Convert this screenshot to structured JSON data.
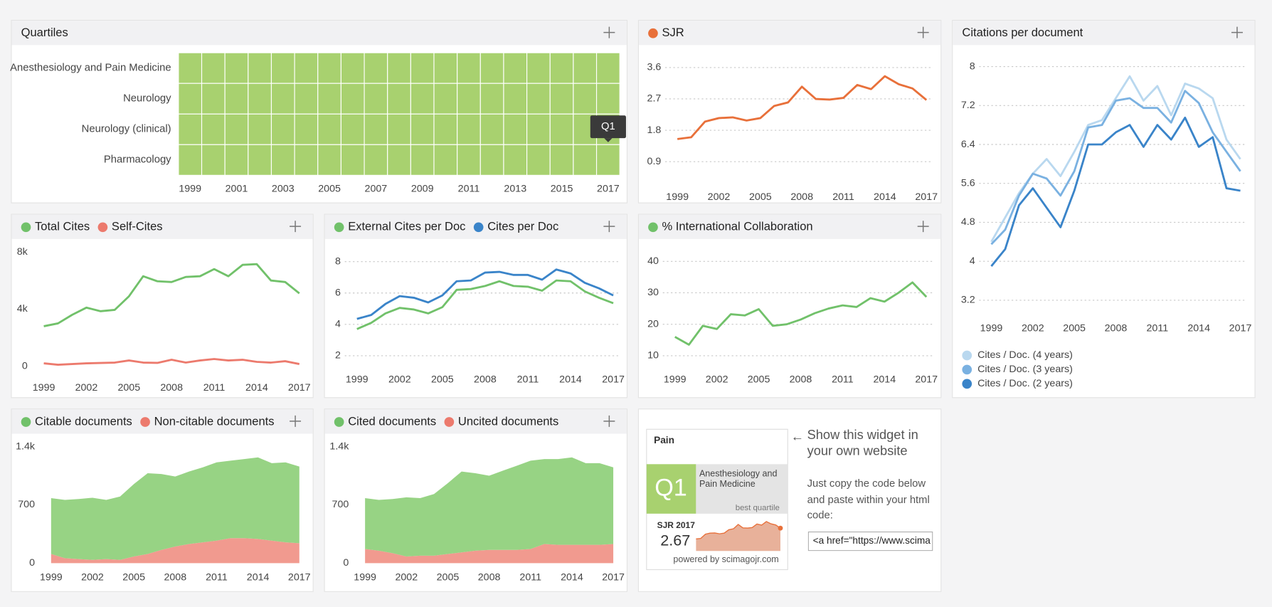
{
  "chart_data": [
    {
      "type": "heatmap",
      "title": "Quartiles",
      "categories": [
        "Anesthesiology and Pain Medicine",
        "Neurology",
        "Neurology (clinical)",
        "Pharmacology"
      ],
      "x": [
        1999,
        2000,
        2001,
        2002,
        2003,
        2004,
        2005,
        2006,
        2007,
        2008,
        2009,
        2010,
        2011,
        2012,
        2013,
        2014,
        2015,
        2016,
        2017
      ],
      "xticks": [
        1999,
        2001,
        2003,
        2005,
        2007,
        2009,
        2011,
        2013,
        2015,
        2017
      ],
      "color": "#a8d16f",
      "values": [
        [
          "Q1",
          "Q1",
          "Q1",
          "Q1",
          "Q1",
          "Q1",
          "Q1",
          "Q1",
          "Q1",
          "Q1",
          "Q1",
          "Q1",
          "Q1",
          "Q1",
          "Q1",
          "Q1",
          "Q1",
          "Q1",
          "Q1"
        ],
        [
          "Q1",
          "Q1",
          "Q1",
          "Q1",
          "Q1",
          "Q1",
          "Q1",
          "Q1",
          "Q1",
          "Q1",
          "Q1",
          "Q1",
          "Q1",
          "Q1",
          "Q1",
          "Q1",
          "Q1",
          "Q1",
          "Q1"
        ],
        [
          "Q1",
          "Q1",
          "Q1",
          "Q1",
          "Q1",
          "Q1",
          "Q1",
          "Q1",
          "Q1",
          "Q1",
          "Q1",
          "Q1",
          "Q1",
          "Q1",
          "Q1",
          "Q1",
          "Q1",
          "Q1",
          "Q1"
        ],
        [
          "Q1",
          "Q1",
          "Q1",
          "Q1",
          "Q1",
          "Q1",
          "Q1",
          "Q1",
          "Q1",
          "Q1",
          "Q1",
          "Q1",
          "Q1",
          "Q1",
          "Q1",
          "Q1",
          "Q1",
          "Q1",
          "Q1"
        ]
      ]
    },
    {
      "type": "line",
      "x": [
        1999,
        2000,
        2001,
        2002,
        2003,
        2004,
        2005,
        2006,
        2007,
        2008,
        2009,
        2010,
        2011,
        2012,
        2013,
        2014,
        2015,
        2016,
        2017
      ],
      "xlim": [
        1999,
        2017
      ],
      "xticks": [
        1999,
        2002,
        2005,
        2008,
        2011,
        2014,
        2017
      ],
      "ylim": [
        0.3,
        4.0
      ],
      "yticks": [
        0.9,
        1.8,
        2.7,
        3.6
      ],
      "grid": true,
      "series": [
        {
          "name": "SJR",
          "color": "#e8703a",
          "values": [
            1.55,
            1.6,
            2.05,
            2.15,
            2.17,
            2.08,
            2.15,
            2.5,
            2.6,
            3.05,
            2.7,
            2.68,
            2.73,
            3.1,
            2.98,
            3.35,
            3.12,
            3.0,
            2.67
          ]
        }
      ]
    },
    {
      "type": "line",
      "title": "Citations per document",
      "x": [
        1999,
        2000,
        2001,
        2002,
        2003,
        2004,
        2005,
        2006,
        2007,
        2008,
        2009,
        2010,
        2011,
        2012,
        2013,
        2014,
        2015,
        2016,
        2017
      ],
      "xlim": [
        1999,
        2017
      ],
      "xticks": [
        1999,
        2002,
        2005,
        2008,
        2011,
        2014,
        2017
      ],
      "ylim": [
        2.8,
        8.35
      ],
      "yticks": [
        3.2,
        4,
        4.8,
        5.6,
        6.4,
        7.2,
        8
      ],
      "grid": true,
      "legend": "bottom-left",
      "series": [
        {
          "name": "Cites / Doc. (4 years)",
          "color": "#b9d8ef",
          "values": [
            4.4,
            4.9,
            5.4,
            5.8,
            6.1,
            5.75,
            6.25,
            6.8,
            6.9,
            7.35,
            7.8,
            7.3,
            7.6,
            7.0,
            7.65,
            7.55,
            7.35,
            6.5,
            6.1
          ]
        },
        {
          "name": "Cites / Doc. (3 years)",
          "color": "#7ab1e1",
          "values": [
            4.35,
            4.65,
            5.35,
            5.8,
            5.7,
            5.35,
            5.85,
            6.75,
            6.8,
            7.3,
            7.35,
            7.15,
            7.15,
            6.85,
            7.5,
            7.25,
            6.65,
            6.25,
            5.85
          ]
        },
        {
          "name": "Cites / Doc. (2 years)",
          "color": "#3a84c9",
          "values": [
            3.9,
            4.25,
            5.15,
            5.5,
            5.1,
            4.7,
            5.45,
            6.4,
            6.4,
            6.65,
            6.8,
            6.35,
            6.8,
            6.5,
            6.95,
            6.35,
            6.55,
            5.5,
            5.45
          ]
        }
      ]
    },
    {
      "type": "line",
      "x": [
        1999,
        2000,
        2001,
        2002,
        2003,
        2004,
        2005,
        2006,
        2007,
        2008,
        2009,
        2010,
        2011,
        2012,
        2013,
        2014,
        2015,
        2016,
        2017
      ],
      "xlim": [
        1999,
        2017
      ],
      "xticks": [
        1999,
        2002,
        2005,
        2008,
        2011,
        2014,
        2017
      ],
      "ylim": [
        -500,
        8600
      ],
      "yticks": [
        0,
        {
          "value": 4000,
          "label": "4k"
        },
        {
          "value": 8000,
          "label": "8k"
        }
      ],
      "grid": false,
      "series": [
        {
          "name": "Total Cites",
          "color": "#71c16a",
          "values": [
            2800,
            3000,
            3600,
            4100,
            3850,
            3950,
            4900,
            6300,
            5950,
            5900,
            6250,
            6300,
            6800,
            6300,
            7100,
            7150,
            6000,
            5900,
            5100
          ]
        },
        {
          "name": "Self-Cites",
          "color": "#ec7a6d",
          "values": [
            200,
            100,
            150,
            200,
            220,
            250,
            400,
            250,
            230,
            450,
            250,
            400,
            500,
            400,
            450,
            300,
            250,
            350,
            150
          ]
        }
      ]
    },
    {
      "type": "line",
      "x": [
        1999,
        2000,
        2001,
        2002,
        2003,
        2004,
        2005,
        2006,
        2007,
        2008,
        2009,
        2010,
        2011,
        2012,
        2013,
        2014,
        2015,
        2016,
        2017
      ],
      "xlim": [
        1999,
        2017
      ],
      "xticks": [
        1999,
        2002,
        2005,
        2008,
        2011,
        2014,
        2017
      ],
      "ylim": [
        1.4,
        8.9
      ],
      "yticks": [
        2,
        4,
        6,
        8
      ],
      "grid": true,
      "series": [
        {
          "name": "External Cites per Doc",
          "color": "#71c16a",
          "values": [
            3.7,
            4.1,
            4.7,
            5.05,
            4.95,
            4.7,
            5.1,
            6.2,
            6.25,
            6.45,
            6.75,
            6.45,
            6.4,
            6.15,
            6.8,
            6.75,
            6.1,
            5.7,
            5.35
          ]
        },
        {
          "name": "Cites per Doc",
          "color": "#3a84c9",
          "values": [
            4.35,
            4.6,
            5.3,
            5.8,
            5.7,
            5.4,
            5.85,
            6.75,
            6.8,
            7.3,
            7.35,
            7.15,
            7.15,
            6.85,
            7.5,
            7.25,
            6.65,
            6.3,
            5.85
          ]
        }
      ]
    },
    {
      "type": "line",
      "x": [
        1999,
        2000,
        2001,
        2002,
        2003,
        2004,
        2005,
        2006,
        2007,
        2008,
        2009,
        2010,
        2011,
        2012,
        2013,
        2014,
        2015,
        2016,
        2017
      ],
      "xlim": [
        1999,
        2017
      ],
      "xticks": [
        1999,
        2002,
        2005,
        2008,
        2011,
        2014,
        2017
      ],
      "ylim": [
        7,
        44.4
      ],
      "yticks": [
        10,
        20,
        30,
        40
      ],
      "grid": true,
      "series": [
        {
          "name": "% International Collaboration",
          "color": "#71c16a",
          "values": [
            16,
            13.5,
            19.5,
            18.5,
            23.2,
            22.8,
            24.8,
            19.5,
            20,
            21.5,
            23.5,
            25,
            26,
            25.5,
            28.3,
            27.2,
            30,
            33.3,
            28.7
          ]
        }
      ]
    },
    {
      "type": "stacked_area",
      "x": [
        1999,
        2000,
        2001,
        2002,
        2003,
        2004,
        2005,
        2006,
        2007,
        2008,
        2009,
        2010,
        2011,
        2012,
        2013,
        2014,
        2015,
        2016,
        2017
      ],
      "xlim": [
        1999,
        2017
      ],
      "xticks": [
        1999,
        2002,
        2005,
        2008,
        2011,
        2014,
        2017
      ],
      "ylim": [
        0,
        1500
      ],
      "yticks": [
        0,
        700,
        {
          "value": 1400,
          "label": "1.4k"
        }
      ],
      "grid": false,
      "series": [
        {
          "name": "Citable documents",
          "color": "#71c16a",
          "fill": "#97d384",
          "values": [
            670,
            700,
            720,
            745,
            710,
            760,
            870,
            970,
            910,
            840,
            870,
            900,
            940,
            930,
            950,
            980,
            930,
            960,
            920
          ]
        },
        {
          "name": "Non-citable documents",
          "color": "#ec7a6d",
          "fill": "#f19a8f",
          "values": [
            110,
            60,
            50,
            40,
            50,
            40,
            80,
            110,
            160,
            200,
            230,
            250,
            270,
            300,
            300,
            290,
            270,
            250,
            240
          ]
        }
      ]
    },
    {
      "type": "stacked_area",
      "x": [
        1999,
        2000,
        2001,
        2002,
        2003,
        2004,
        2005,
        2006,
        2007,
        2008,
        2009,
        2010,
        2011,
        2012,
        2013,
        2014,
        2015,
        2016,
        2017
      ],
      "xlim": [
        1999,
        2017
      ],
      "xticks": [
        1999,
        2002,
        2005,
        2008,
        2011,
        2014,
        2017
      ],
      "ylim": [
        0,
        1500
      ],
      "yticks": [
        0,
        700,
        {
          "value": 1400,
          "label": "1.4k"
        }
      ],
      "grid": false,
      "series": [
        {
          "name": "Cited documents",
          "color": "#71c16a",
          "fill": "#97d384",
          "values": [
            610,
            610,
            650,
            710,
            690,
            740,
            850,
            970,
            930,
            890,
            950,
            1010,
            1060,
            1020,
            1030,
            1050,
            980,
            980,
            920
          ]
        },
        {
          "name": "Uncited documents",
          "color": "#ec7a6d",
          "fill": "#f19a8f",
          "values": [
            170,
            150,
            120,
            80,
            90,
            90,
            110,
            130,
            150,
            160,
            160,
            160,
            170,
            230,
            220,
            220,
            220,
            220,
            230
          ]
        }
      ]
    }
  ],
  "widget": {
    "journal": "Pain",
    "quartile": "Q1",
    "category": "Anesthesiology and Pain Medicine",
    "quartile_note": "best quartile",
    "sjr_label": "SJR 2017",
    "sjr_value": "2.67",
    "powered_by": "powered by scimagojr.com",
    "arrow": "←",
    "heading": "Show this widget in your own website",
    "instructions": "Just copy the code below and paste within your html code:",
    "code": "<a href=\"https://www.scima"
  }
}
